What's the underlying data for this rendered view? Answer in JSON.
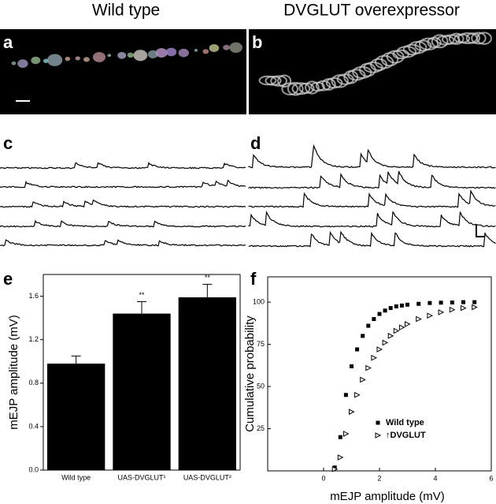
{
  "header": {
    "left": "Wild type",
    "right": "DVGLUT overexpressor"
  },
  "panels": [
    "a",
    "b",
    "c",
    "d",
    "e",
    "f"
  ],
  "chart_data": [
    {
      "type": "bar",
      "ylabel": "mEJP amplitude (mV)",
      "categories": [
        "Wild type",
        "UAS-DVGLUT¹",
        "UAS-DVGLUT²"
      ],
      "values": [
        0.98,
        1.44,
        1.59
      ],
      "errors": [
        0.07,
        0.11,
        0.12
      ],
      "color": "#000000",
      "annotations": [
        {
          "text": "**",
          "x": "UAS-DVGLUT¹"
        },
        {
          "text": "**",
          "x": "UAS-DVGLUT²"
        }
      ],
      "ylim": [
        0,
        1.8
      ],
      "yticks": [
        {
          "value": 0,
          "label": "0.0"
        },
        0.4,
        0.8,
        1.2,
        1.6
      ]
    },
    {
      "type": "scatter",
      "xlabel": "mEJP amplitude (mV)",
      "ylabel": "Cumulative probability",
      "xlim": [
        -2,
        6
      ],
      "xticks": [
        0,
        2,
        4,
        6
      ],
      "ylim": [
        0,
        115
      ],
      "yticks": [
        25,
        50,
        75,
        100
      ],
      "legend": "lower right",
      "series": [
        {
          "name": "Wild type",
          "marker": "filled-square",
          "color": "#000000",
          "x": [
            0.4,
            0.6,
            0.8,
            1.0,
            1.2,
            1.4,
            1.6,
            1.8,
            2.0,
            2.2,
            2.4,
            2.6,
            2.8,
            3.0,
            3.4,
            3.8,
            4.2,
            4.6,
            5.0,
            5.4
          ],
          "values": [
            2,
            20,
            45,
            62,
            72,
            80,
            86,
            90,
            93,
            95,
            96.5,
            97.5,
            98,
            98.5,
            99,
            99.5,
            99.7,
            99.8,
            100,
            100
          ]
        },
        {
          "name": "↑DVGLUT",
          "marker": "open-triangle",
          "color": "#000000",
          "x": [
            0.4,
            0.6,
            0.8,
            1.0,
            1.2,
            1.4,
            1.6,
            1.8,
            2.0,
            2.2,
            2.4,
            2.6,
            2.8,
            3.0,
            3.4,
            3.8,
            4.2,
            4.6,
            5.0,
            5.4
          ],
          "values": [
            1,
            8,
            22,
            35,
            45,
            54,
            61,
            67,
            72,
            76,
            80,
            83,
            85,
            87,
            90,
            92,
            94,
            95.5,
            96.5,
            97
          ]
        }
      ]
    }
  ]
}
